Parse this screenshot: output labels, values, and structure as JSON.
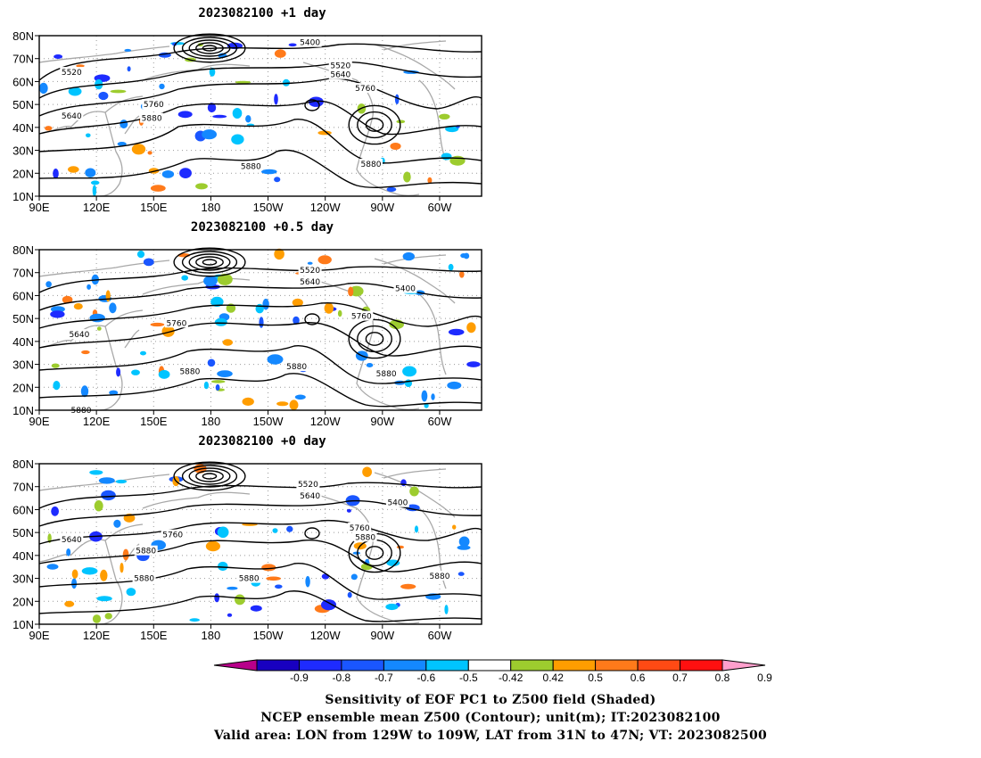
{
  "panels": [
    {
      "title": "2023082100  +1 day",
      "contour_labels": [
        {
          "text": "5400",
          "lon": -128,
          "lat": 77
        },
        {
          "text": "5520",
          "lon": -112,
          "lat": 67
        },
        {
          "text": "5640",
          "lon": -112,
          "lat": 63
        },
        {
          "text": "5760",
          "lon": -99,
          "lat": 57
        },
        {
          "text": "5520",
          "lon": 107,
          "lat": 64
        },
        {
          "text": "5640",
          "lon": 107,
          "lat": 45
        },
        {
          "text": "5760",
          "lon": 150,
          "lat": 50
        },
        {
          "text": "5880",
          "lon": 149,
          "lat": 44
        },
        {
          "text": "5880",
          "lon": -159,
          "lat": 23
        },
        {
          "text": "5880",
          "lon": -96,
          "lat": 24
        }
      ]
    },
    {
      "title": "2023082100  +0.5 day",
      "contour_labels": [
        {
          "text": "5520",
          "lon": -128,
          "lat": 71
        },
        {
          "text": "5640",
          "lon": -128,
          "lat": 66
        },
        {
          "text": "5400",
          "lon": -78,
          "lat": 63
        },
        {
          "text": "5760",
          "lon": -101,
          "lat": 51
        },
        {
          "text": "5760",
          "lon": 162,
          "lat": 48
        },
        {
          "text": "5640",
          "lon": 111,
          "lat": 43
        },
        {
          "text": "5880",
          "lon": 169,
          "lat": 27
        },
        {
          "text": "5880",
          "lon": -135,
          "lat": 29
        },
        {
          "text": "5880",
          "lon": -88,
          "lat": 26
        },
        {
          "text": "5880",
          "lon": 112,
          "lat": 10
        }
      ]
    },
    {
      "title": "2023082100  +0 day",
      "contour_labels": [
        {
          "text": "5520",
          "lon": -129,
          "lat": 71
        },
        {
          "text": "5640",
          "lon": -128,
          "lat": 66
        },
        {
          "text": "5400",
          "lon": -82,
          "lat": 63
        },
        {
          "text": "5760",
          "lon": -102,
          "lat": 52
        },
        {
          "text": "5880",
          "lon": -99,
          "lat": 48
        },
        {
          "text": "5640",
          "lon": 107,
          "lat": 47
        },
        {
          "text": "5760",
          "lon": 160,
          "lat": 49
        },
        {
          "text": "5880",
          "lon": 146,
          "lat": 42
        },
        {
          "text": "5880",
          "lon": 145,
          "lat": 30
        },
        {
          "text": "5880",
          "lon": -160,
          "lat": 30
        },
        {
          "text": "5880",
          "lon": -60,
          "lat": 31
        }
      ]
    }
  ],
  "axes": {
    "lat_ticks": [
      "10N",
      "20N",
      "30N",
      "40N",
      "50N",
      "60N",
      "70N",
      "80N"
    ],
    "lat_values": [
      10,
      20,
      30,
      40,
      50,
      60,
      70,
      80
    ],
    "lon_ticks": [
      "90E",
      "120E",
      "150E",
      "180",
      "150W",
      "120W",
      "90W",
      "60W"
    ],
    "lon_values": [
      90,
      120,
      150,
      180,
      210,
      240,
      270,
      300
    ],
    "lon_range": [
      90,
      322
    ],
    "lat_range": [
      10,
      80
    ]
  },
  "colorbar": {
    "labels": [
      "-0.9",
      "-0.8",
      "-0.7",
      "-0.6",
      "-0.5",
      "-0.42",
      "0.42",
      "0.5",
      "0.6",
      "0.7",
      "0.8",
      "0.9"
    ],
    "colors": [
      "#b8008a",
      "#1800c0",
      "#1e2bff",
      "#1a56ff",
      "#1488ff",
      "#00c4ff",
      "#ffffff",
      "#9dcc2e",
      "#ff9d00",
      "#ff7a1a",
      "#ff4a14",
      "#ff1010",
      "#ff9fcc"
    ]
  },
  "captions": [
    "Sensitivity of EOF PC1 to Z500 field (Shaded)",
    "NCEP ensemble mean Z500 (Contour); unit(m); IT:2023082100",
    "Valid area: LON from 129W to 109W, LAT from 31N to 47N; VT: 2023082500"
  ]
}
